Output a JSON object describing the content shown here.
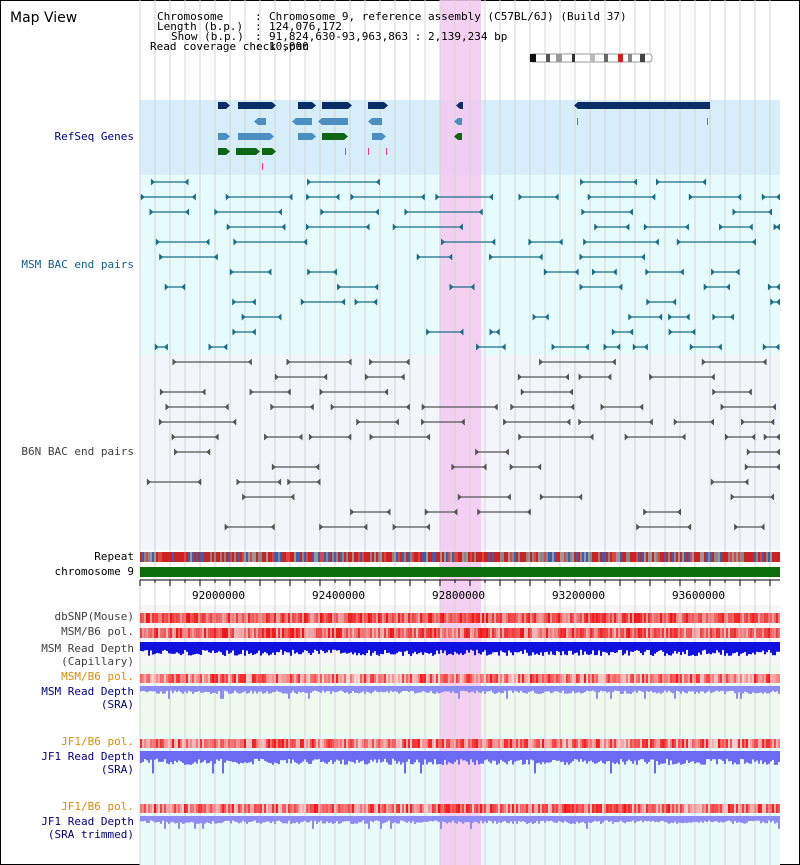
{
  "window": {
    "title": "Map View"
  },
  "header": {
    "chromosome_label": "Chromosome",
    "chromosome_value": "Chromosome 9, reference assembly (C57BL/6J) (Build 37)",
    "length_label": "Length (b.p.)",
    "length_value": "124,076,172",
    "show_label": "Show (b.p.)",
    "show_value": "91,824,630-93,963,863 : 2,139,234 bp",
    "coverage_label": "Read coverage check span",
    "coverage_value": "10,000"
  },
  "tracks": {
    "refseq": "RefSeq Genes",
    "msm_bac": "MSM BAC end pairs",
    "b6n_bac": "B6N BAC end pairs",
    "repeat": "Repeat",
    "chromosome": "chromosome 9",
    "dbsnp": "dbSNP(Mouse)",
    "msm_b6_pol_1": "MSM/B6 pol.",
    "msm_depth_cap_1": "MSM Read Depth",
    "msm_depth_cap_2": "(Capillary)",
    "msm_b6_pol_2": "MSM/B6 pol.",
    "msm_depth_sra_1": "MSM Read Depth",
    "msm_depth_sra_2": "(SRA)",
    "jf1_b6_pol_1": "JF1/B6 pol.",
    "jf1_depth_sra_1": "JF1 Read Depth",
    "jf1_depth_sra_2": "(SRA)",
    "jf1_b6_pol_2": "JF1/B6 pol.",
    "jf1_depth_trim_1": "JF1 Read Depth",
    "jf1_depth_trim_2": "(SRA trimmed)"
  },
  "axis": {
    "ticks": [
      "92000000",
      "92400000",
      "92800000",
      "93200000",
      "93600000"
    ]
  },
  "colors": {
    "refseq_bg": "#d6eefa",
    "msm_bg": "#e6fbfb",
    "b6n_bg": "#f4f4fb",
    "highlight": "#f4c8ee",
    "refseq_dark": "#0b2d66",
    "refseq_mid": "#4a8fc0",
    "refseq_green": "#0e6614",
    "msm_bac": "#1b6e87",
    "b6n_bac": "#555555",
    "chrom_green": "#0b6e0b",
    "label_navy": "#000080",
    "label_teal": "#0e5e8a",
    "label_orange": "#e08a00",
    "label_gray": "#404040"
  }
}
